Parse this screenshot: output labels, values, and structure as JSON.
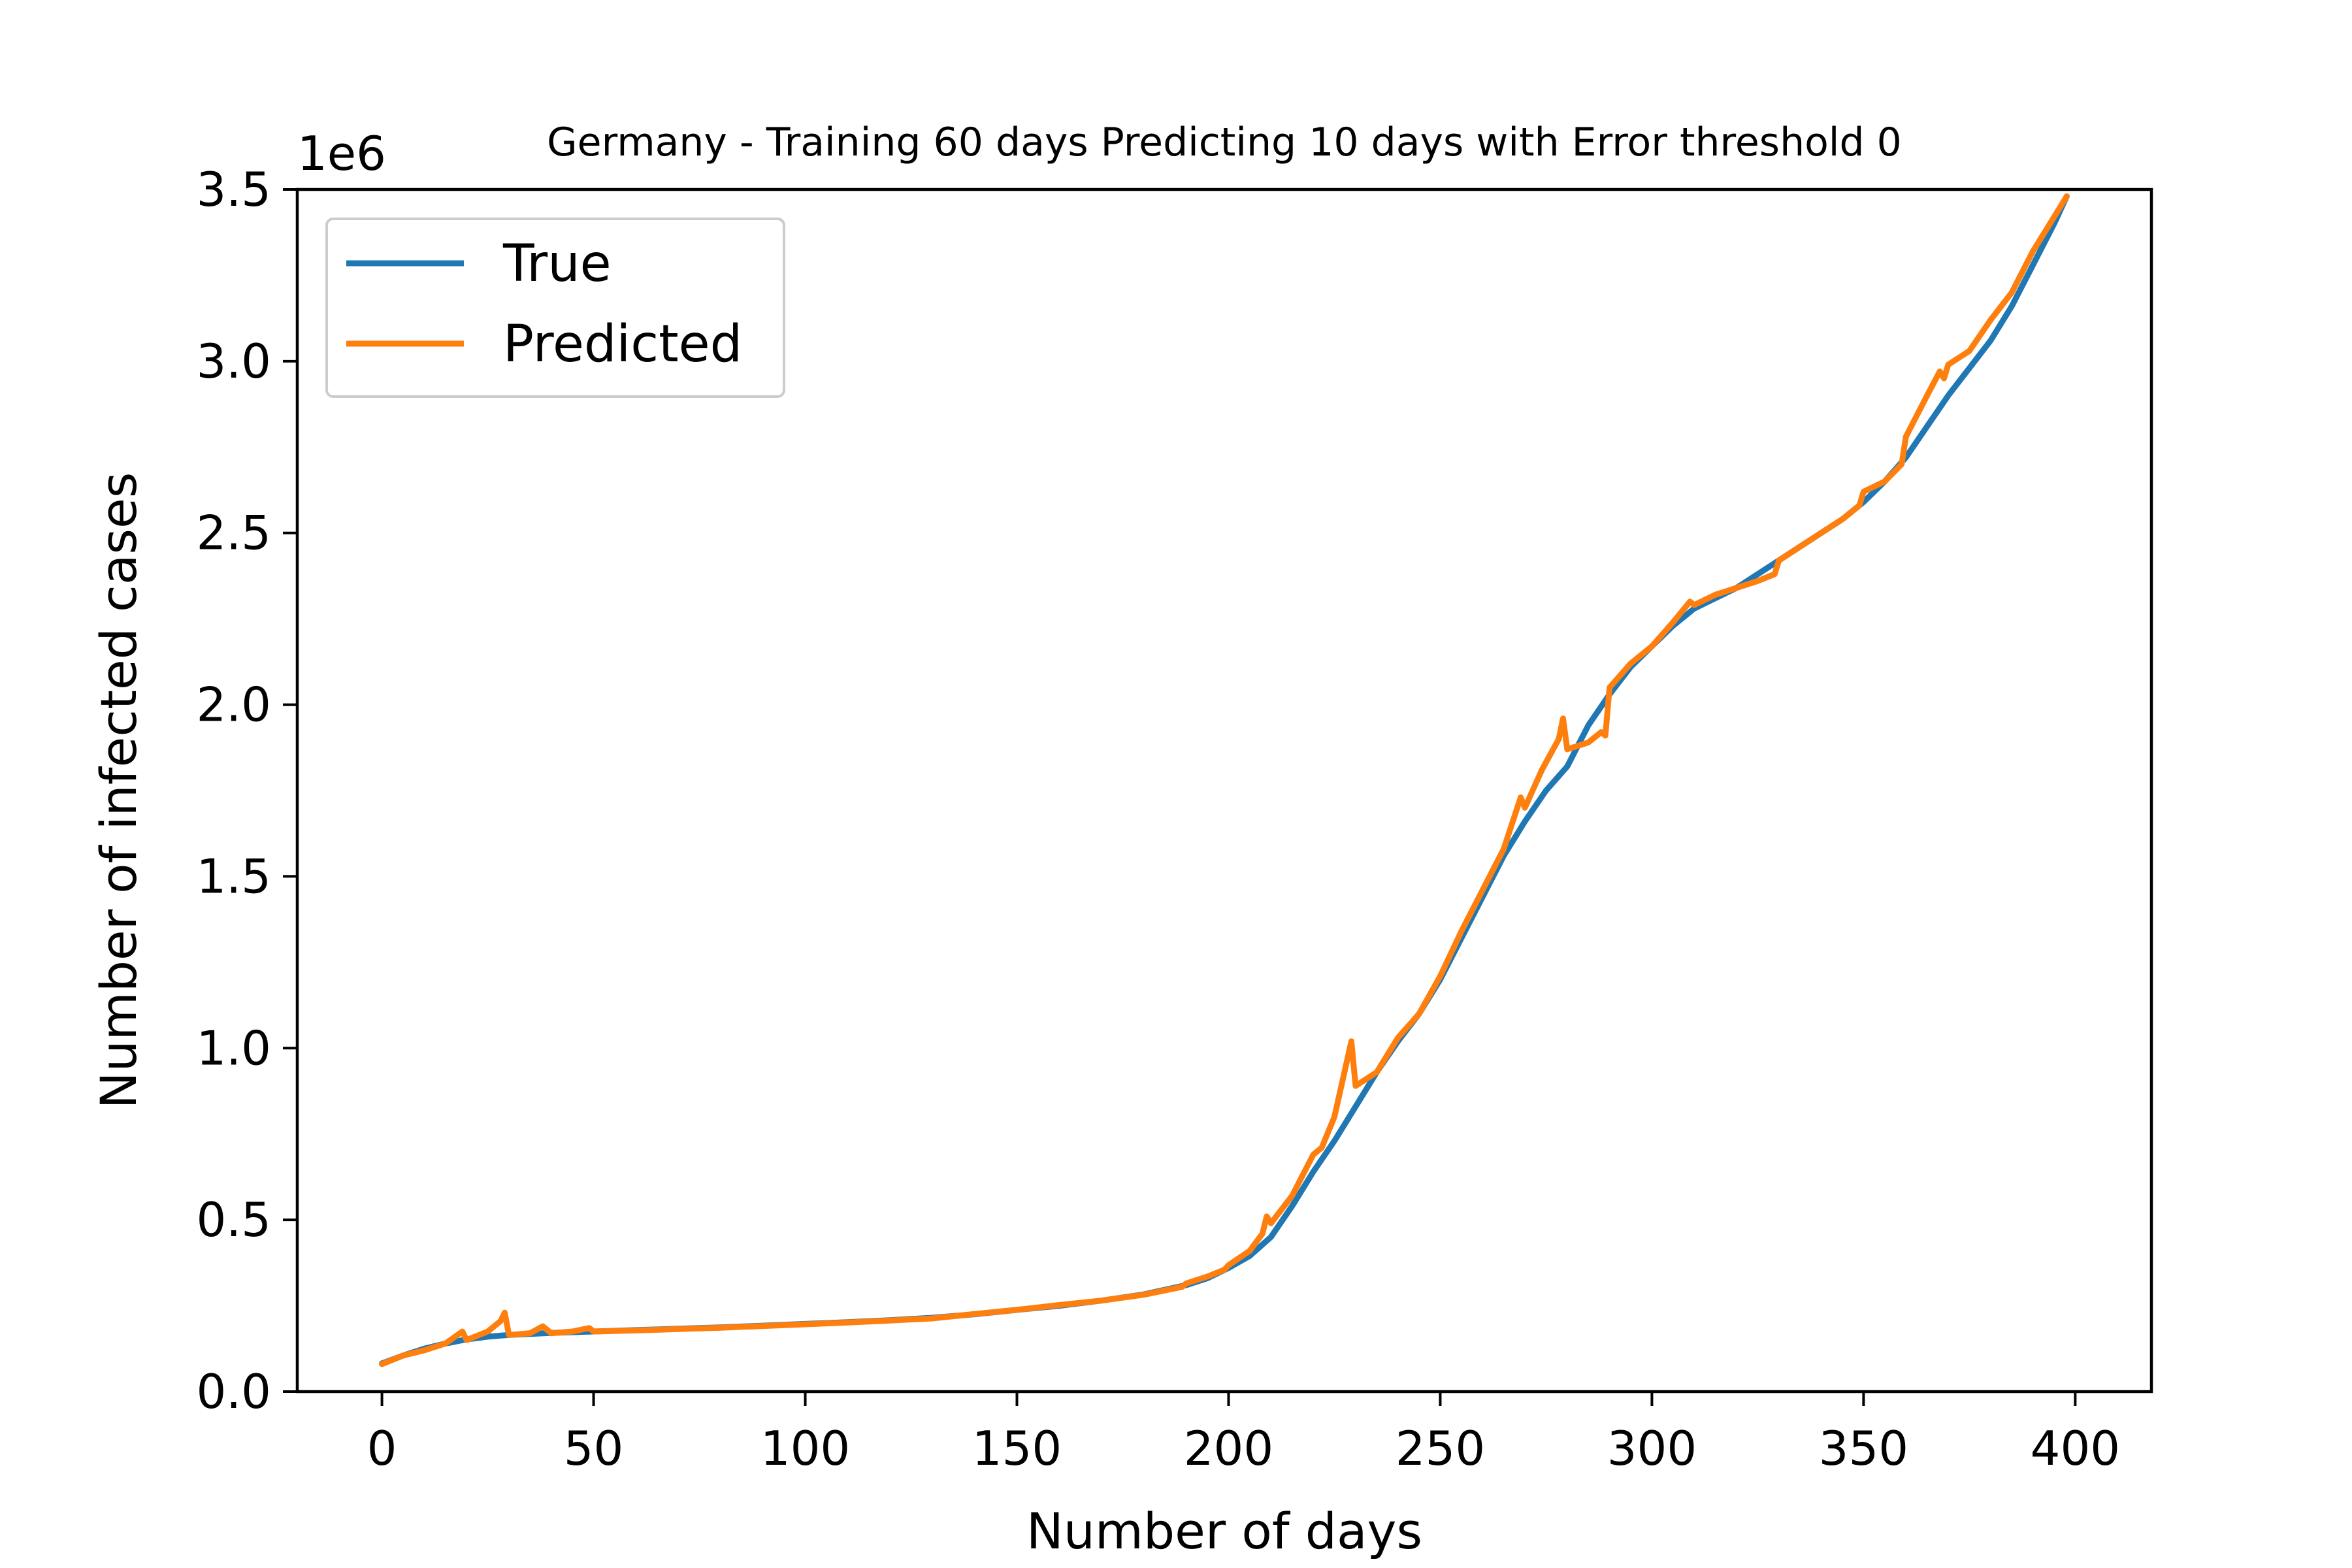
{
  "chart_data": {
    "type": "line",
    "title": "Germany - Training 60 days Predicting 10 days with Error threshold 0",
    "xlabel": "Number of days",
    "ylabel": "Number of infected cases",
    "y_offset_label": "1e6",
    "xlim": [
      -20,
      418
    ],
    "ylim": [
      0,
      3500000
    ],
    "xticks": [
      0,
      50,
      100,
      150,
      200,
      250,
      300,
      350,
      400
    ],
    "yticks": [
      0,
      500000,
      1000000,
      1500000,
      2000000,
      2500000,
      3000000,
      3500000
    ],
    "ytick_labels": [
      "0.0",
      "0.5",
      "1.0",
      "1.5",
      "2.0",
      "2.5",
      "3.0",
      "3.5"
    ],
    "grid": false,
    "legend_position": "top-left",
    "series": [
      {
        "name": "True",
        "color": "#1f77b4",
        "points": [
          [
            0,
            82000
          ],
          [
            5,
            105000
          ],
          [
            10,
            125000
          ],
          [
            15,
            140000
          ],
          [
            20,
            152000
          ],
          [
            25,
            160000
          ],
          [
            30,
            165000
          ],
          [
            35,
            168000
          ],
          [
            40,
            171000
          ],
          [
            45,
            173000
          ],
          [
            50,
            175000
          ],
          [
            60,
            179000
          ],
          [
            70,
            183000
          ],
          [
            80,
            187000
          ],
          [
            90,
            192000
          ],
          [
            100,
            197000
          ],
          [
            110,
            202000
          ],
          [
            120,
            208000
          ],
          [
            130,
            215000
          ],
          [
            140,
            225000
          ],
          [
            150,
            238000
          ],
          [
            160,
            250000
          ],
          [
            170,
            265000
          ],
          [
            180,
            283000
          ],
          [
            190,
            310000
          ],
          [
            195,
            330000
          ],
          [
            200,
            360000
          ],
          [
            205,
            395000
          ],
          [
            210,
            450000
          ],
          [
            215,
            540000
          ],
          [
            220,
            640000
          ],
          [
            225,
            730000
          ],
          [
            230,
            830000
          ],
          [
            235,
            930000
          ],
          [
            240,
            1020000
          ],
          [
            245,
            1100000
          ],
          [
            250,
            1200000
          ],
          [
            255,
            1320000
          ],
          [
            260,
            1440000
          ],
          [
            265,
            1560000
          ],
          [
            270,
            1660000
          ],
          [
            275,
            1750000
          ],
          [
            280,
            1820000
          ],
          [
            285,
            1940000
          ],
          [
            290,
            2030000
          ],
          [
            295,
            2110000
          ],
          [
            300,
            2170000
          ],
          [
            305,
            2230000
          ],
          [
            310,
            2280000
          ],
          [
            315,
            2310000
          ],
          [
            320,
            2340000
          ],
          [
            325,
            2380000
          ],
          [
            330,
            2420000
          ],
          [
            335,
            2460000
          ],
          [
            340,
            2500000
          ],
          [
            345,
            2540000
          ],
          [
            350,
            2590000
          ],
          [
            355,
            2650000
          ],
          [
            360,
            2720000
          ],
          [
            365,
            2810000
          ],
          [
            370,
            2900000
          ],
          [
            375,
            2980000
          ],
          [
            380,
            3060000
          ],
          [
            385,
            3160000
          ],
          [
            390,
            3280000
          ],
          [
            395,
            3400000
          ],
          [
            398,
            3480000
          ]
        ]
      },
      {
        "name": "Predicted",
        "color": "#ff7f0e",
        "points": [
          [
            0,
            80000
          ],
          [
            5,
            105000
          ],
          [
            10,
            120000
          ],
          [
            15,
            140000
          ],
          [
            19,
            175000
          ],
          [
            20,
            150000
          ],
          [
            25,
            175000
          ],
          [
            28,
            205000
          ],
          [
            29,
            230000
          ],
          [
            30,
            165000
          ],
          [
            35,
            170000
          ],
          [
            38,
            190000
          ],
          [
            40,
            170000
          ],
          [
            45,
            175000
          ],
          [
            49,
            185000
          ],
          [
            50,
            175000
          ],
          [
            60,
            178000
          ],
          [
            70,
            182000
          ],
          [
            80,
            186000
          ],
          [
            90,
            191000
          ],
          [
            100,
            196000
          ],
          [
            110,
            201000
          ],
          [
            120,
            207000
          ],
          [
            130,
            213000
          ],
          [
            140,
            226000
          ],
          [
            150,
            238000
          ],
          [
            160,
            252000
          ],
          [
            170,
            265000
          ],
          [
            180,
            282000
          ],
          [
            189,
            305000
          ],
          [
            190,
            315000
          ],
          [
            195,
            335000
          ],
          [
            199,
            355000
          ],
          [
            200,
            368000
          ],
          [
            205,
            410000
          ],
          [
            208,
            460000
          ],
          [
            209,
            510000
          ],
          [
            210,
            490000
          ],
          [
            215,
            570000
          ],
          [
            220,
            690000
          ],
          [
            222,
            710000
          ],
          [
            225,
            800000
          ],
          [
            229,
            1020000
          ],
          [
            230,
            890000
          ],
          [
            235,
            930000
          ],
          [
            240,
            1030000
          ],
          [
            245,
            1100000
          ],
          [
            250,
            1210000
          ],
          [
            255,
            1340000
          ],
          [
            260,
            1460000
          ],
          [
            265,
            1580000
          ],
          [
            269,
            1730000
          ],
          [
            270,
            1700000
          ],
          [
            274,
            1810000
          ],
          [
            278,
            1900000
          ],
          [
            279,
            1960000
          ],
          [
            280,
            1870000
          ],
          [
            285,
            1890000
          ],
          [
            288,
            1920000
          ],
          [
            289,
            1910000
          ],
          [
            290,
            2050000
          ],
          [
            295,
            2120000
          ],
          [
            300,
            2170000
          ],
          [
            305,
            2240000
          ],
          [
            309,
            2300000
          ],
          [
            310,
            2290000
          ],
          [
            315,
            2320000
          ],
          [
            320,
            2340000
          ],
          [
            325,
            2360000
          ],
          [
            329,
            2380000
          ],
          [
            330,
            2420000
          ],
          [
            335,
            2460000
          ],
          [
            340,
            2500000
          ],
          [
            345,
            2540000
          ],
          [
            349,
            2580000
          ],
          [
            350,
            2620000
          ],
          [
            355,
            2650000
          ],
          [
            359,
            2700000
          ],
          [
            360,
            2780000
          ],
          [
            365,
            2900000
          ],
          [
            368,
            2970000
          ],
          [
            369,
            2950000
          ],
          [
            370,
            2990000
          ],
          [
            375,
            3030000
          ],
          [
            380,
            3120000
          ],
          [
            385,
            3200000
          ],
          [
            390,
            3320000
          ],
          [
            395,
            3420000
          ],
          [
            398,
            3480000
          ]
        ]
      }
    ]
  }
}
